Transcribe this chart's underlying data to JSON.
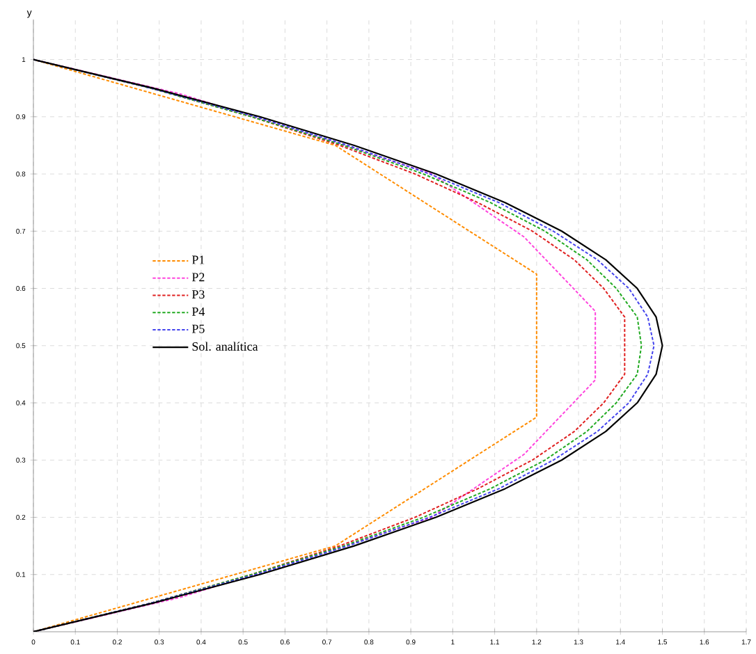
{
  "chart_data": {
    "type": "line",
    "ylabel": "y",
    "xlim": [
      0,
      1.7
    ],
    "xticks": [
      0,
      0.1,
      0.2,
      0.3,
      0.4,
      0.5,
      0.6,
      0.7,
      0.8,
      0.9,
      1,
      1.1,
      1.2,
      1.3,
      1.4,
      1.5,
      1.6,
      1.7
    ],
    "ylim": [
      0,
      1.07
    ],
    "yticks": [
      0.1,
      0.2,
      0.3,
      0.4,
      0.5,
      0.6,
      0.7,
      0.8,
      0.9,
      1
    ],
    "grid": true,
    "legend": "left",
    "series": [
      {
        "name": "P1",
        "color": "#ff8c00",
        "line_style": "dashed",
        "x": [
          0,
          0.72,
          1.2,
          1.2,
          0.72,
          0
        ],
        "values": [
          0,
          0.15,
          0.375,
          0.625,
          0.85,
          1
        ]
      },
      {
        "name": "P2",
        "color": "#ff44dd",
        "line_style": "dashed",
        "x": [
          0,
          0.35,
          0.7,
          0.95,
          1.17,
          1.34,
          1.34,
          1.17,
          0.95,
          0.7,
          0.35,
          0
        ],
        "values": [
          0,
          0.06,
          0.14,
          0.2,
          0.31,
          0.44,
          0.56,
          0.69,
          0.8,
          0.86,
          0.94,
          1
        ]
      },
      {
        "name": "P3",
        "color": "#e02020",
        "line_style": "dashed",
        "x": [
          0,
          0.28,
          0.52,
          0.73,
          0.91,
          1.06,
          1.19,
          1.29,
          1.36,
          1.41,
          1.41,
          1.36,
          1.29,
          1.19,
          1.06,
          0.91,
          0.73,
          0.52,
          0.28,
          0
        ],
        "values": [
          0,
          0.05,
          0.1,
          0.15,
          0.2,
          0.25,
          0.3,
          0.35,
          0.4,
          0.45,
          0.55,
          0.6,
          0.65,
          0.7,
          0.75,
          0.8,
          0.85,
          0.9,
          0.95,
          1
        ]
      },
      {
        "name": "P4",
        "color": "#22aa22",
        "line_style": "dashed",
        "x": [
          0,
          0.28,
          0.52,
          0.74,
          0.93,
          1.09,
          1.22,
          1.32,
          1.39,
          1.44,
          1.45,
          1.44,
          1.39,
          1.32,
          1.22,
          1.09,
          0.93,
          0.74,
          0.52,
          0.28,
          0
        ],
        "values": [
          0,
          0.05,
          0.1,
          0.15,
          0.2,
          0.25,
          0.3,
          0.35,
          0.4,
          0.45,
          0.5,
          0.55,
          0.6,
          0.65,
          0.7,
          0.75,
          0.8,
          0.85,
          0.9,
          0.95,
          1
        ]
      },
      {
        "name": "P5",
        "color": "#4444ee",
        "line_style": "dashed",
        "x": [
          0,
          0.28,
          0.53,
          0.75,
          0.945,
          1.11,
          1.24,
          1.345,
          1.42,
          1.465,
          1.48,
          1.465,
          1.42,
          1.345,
          1.24,
          1.11,
          0.945,
          0.75,
          0.53,
          0.28,
          0
        ],
        "values": [
          0,
          0.05,
          0.1,
          0.15,
          0.2,
          0.25,
          0.3,
          0.35,
          0.4,
          0.45,
          0.5,
          0.55,
          0.6,
          0.65,
          0.7,
          0.75,
          0.8,
          0.85,
          0.9,
          0.95,
          1
        ]
      },
      {
        "name": "Sol. analítica",
        "color": "#000000",
        "line_style": "solid",
        "x": [
          0,
          0.285,
          0.54,
          0.765,
          0.96,
          1.125,
          1.26,
          1.365,
          1.44,
          1.485,
          1.5,
          1.485,
          1.44,
          1.365,
          1.26,
          1.125,
          0.96,
          0.765,
          0.54,
          0.285,
          0
        ],
        "values": [
          0,
          0.05,
          0.1,
          0.15,
          0.2,
          0.25,
          0.3,
          0.35,
          0.4,
          0.45,
          0.5,
          0.55,
          0.6,
          0.65,
          0.7,
          0.75,
          0.8,
          0.85,
          0.9,
          0.95,
          1
        ]
      }
    ]
  }
}
